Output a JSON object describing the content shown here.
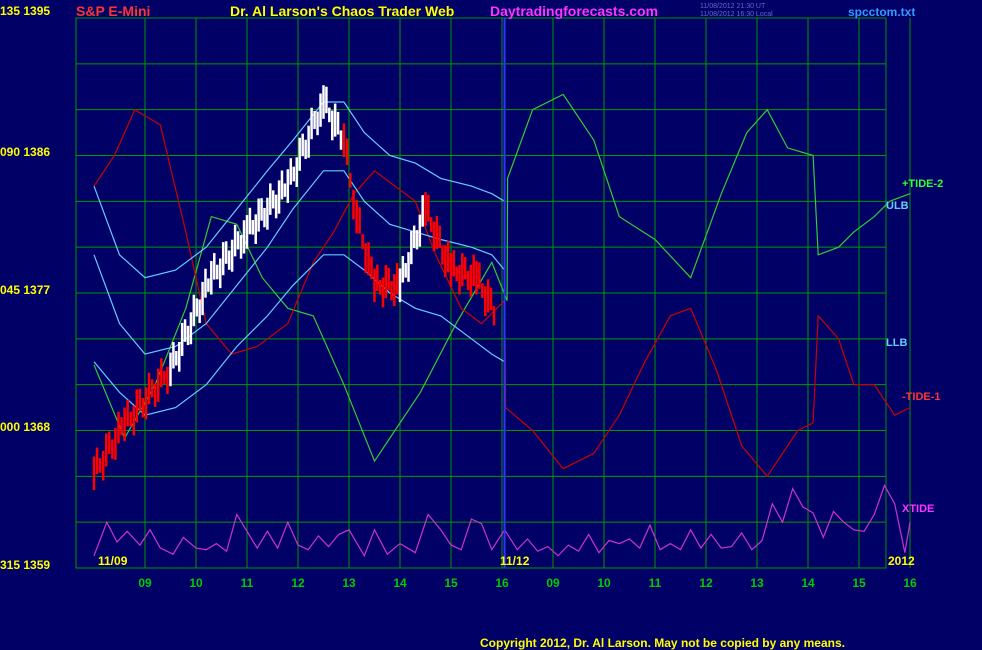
{
  "header": {
    "symbol": "S&P E-Mini",
    "title": "Dr. Al Larson's Chaos Trader Web",
    "site": "Daytradingforecasts.com",
    "ts1": "11/08/2012 21:30 UT",
    "ts2": "11/08/2012 16:30 Local",
    "file": "spcctom.txt"
  },
  "colors": {
    "background": "#000066",
    "grid": "#009900",
    "price_up": "#ffffff",
    "price_down": "#ff0000",
    "tide_plus": "#33cc33",
    "tide_minus": "#cc0000",
    "bands": "#66ccff",
    "xtide": "#cc33cc",
    "accent_yellow": "#ffff00"
  },
  "copyright": "Copyright 2012, Dr. Al Larson. May not be copied by any means.",
  "chart_data": {
    "type": "line",
    "y_axis_labels": [
      {
        "left": "135",
        "price": "1395"
      },
      {
        "left": "090",
        "price": "1386"
      },
      {
        "left": "045",
        "price": "1377"
      },
      {
        "left": "000",
        "price": "1368"
      },
      {
        "left": "315",
        "price": "1359"
      }
    ],
    "ylim": [
      1359,
      1395
    ],
    "x_ticks": [
      "09",
      "10",
      "11",
      "12",
      "13",
      "14",
      "15",
      "16",
      "09",
      "10",
      "11",
      "12",
      "13",
      "14",
      "15",
      "16"
    ],
    "x_tick_days": [
      1,
      2,
      3,
      4,
      5,
      6,
      7,
      8,
      9,
      10,
      11,
      12,
      13,
      14,
      15,
      16
    ],
    "date_labels": {
      "start": "11/09",
      "mid": "11/12",
      "end": "2012"
    },
    "right_labels": {
      "tide_plus": "+TIDE-2",
      "ulb": "ULB",
      "llb": "LLB",
      "tide_minus": "-TIDE-1",
      "xtide": "XTIDE"
    },
    "now_day": 8.05,
    "series": [
      {
        "key": "tide_plus",
        "color": "#33cc33",
        "points": [
          [
            0,
            1372.3
          ],
          [
            0.6,
            1367.5
          ],
          [
            1.2,
            1371
          ],
          [
            1.8,
            1376
          ],
          [
            2.3,
            1382
          ],
          [
            2.8,
            1381.5
          ],
          [
            3.3,
            1378
          ],
          [
            3.8,
            1376
          ],
          [
            4.3,
            1375.5
          ],
          [
            4.9,
            1371
          ],
          [
            5.5,
            1366
          ],
          [
            6.4,
            1370.5
          ],
          [
            7.1,
            1375
          ],
          [
            7.8,
            1379
          ],
          [
            8.1,
            1376.5
          ],
          [
            8.11,
            1384.5
          ],
          [
            8.6,
            1389
          ],
          [
            9.2,
            1390
          ],
          [
            9.8,
            1387
          ],
          [
            10.3,
            1382
          ],
          [
            11.0,
            1380.5
          ],
          [
            11.7,
            1378
          ],
          [
            12.3,
            1383.5
          ],
          [
            12.8,
            1387.5
          ],
          [
            13.2,
            1389
          ],
          [
            13.6,
            1386.5
          ],
          [
            14.1,
            1386
          ],
          [
            14.2,
            1379.5
          ],
          [
            14.6,
            1380
          ],
          [
            14.9,
            1381
          ],
          [
            15.3,
            1382
          ],
          [
            15.6,
            1383
          ],
          [
            16.0,
            1383.5
          ]
        ]
      },
      {
        "key": "tide_minus",
        "color": "#cc0000",
        "points": [
          [
            0,
            1384
          ],
          [
            0.4,
            1386
          ],
          [
            0.8,
            1389
          ],
          [
            1.3,
            1388
          ],
          [
            1.8,
            1381
          ],
          [
            2.2,
            1375
          ],
          [
            2.7,
            1373
          ],
          [
            3.2,
            1373.5
          ],
          [
            3.8,
            1375
          ],
          [
            4.3,
            1379
          ],
          [
            4.7,
            1381
          ],
          [
            5.1,
            1383.5
          ],
          [
            5.5,
            1385
          ],
          [
            5.9,
            1384
          ],
          [
            6.3,
            1383
          ],
          [
            6.7,
            1379.5
          ],
          [
            7.2,
            1376
          ],
          [
            7.6,
            1375
          ],
          [
            8.05,
            1376.5
          ],
          [
            8.07,
            1369.5
          ],
          [
            8.6,
            1368
          ],
          [
            9.2,
            1365.5
          ],
          [
            9.8,
            1366.5
          ],
          [
            10.3,
            1369
          ],
          [
            10.8,
            1372.5
          ],
          [
            11.3,
            1375.5
          ],
          [
            11.7,
            1376
          ],
          [
            12.2,
            1372
          ],
          [
            12.7,
            1367
          ],
          [
            13.2,
            1365
          ],
          [
            13.8,
            1368
          ],
          [
            14.1,
            1368.5
          ],
          [
            14.2,
            1375.5
          ],
          [
            14.6,
            1374
          ],
          [
            14.9,
            1371
          ],
          [
            15.3,
            1371
          ],
          [
            15.7,
            1369
          ],
          [
            16.0,
            1369.5
          ]
        ]
      },
      {
        "key": "ulb",
        "color": "#66ccff",
        "points": [
          [
            0,
            1384
          ],
          [
            0.5,
            1379.5
          ],
          [
            1.0,
            1378
          ],
          [
            1.6,
            1378.5
          ],
          [
            2.2,
            1380
          ],
          [
            2.8,
            1382.5
          ],
          [
            3.4,
            1385
          ],
          [
            3.9,
            1387
          ],
          [
            4.5,
            1389.5
          ],
          [
            4.9,
            1389.5
          ],
          [
            5.3,
            1387.5
          ],
          [
            5.8,
            1386
          ],
          [
            6.3,
            1385.5
          ],
          [
            6.8,
            1384.5
          ],
          [
            7.4,
            1384
          ],
          [
            7.8,
            1383.5
          ],
          [
            8.05,
            1383
          ]
        ]
      },
      {
        "key": "mid_band",
        "color": "#66ccff",
        "points": [
          [
            0,
            1379.5
          ],
          [
            0.5,
            1375
          ],
          [
            1.0,
            1373
          ],
          [
            1.6,
            1373.5
          ],
          [
            2.2,
            1375
          ],
          [
            2.8,
            1377.5
          ],
          [
            3.4,
            1380
          ],
          [
            3.9,
            1382.5
          ],
          [
            4.5,
            1385
          ],
          [
            4.9,
            1385
          ],
          [
            5.3,
            1383
          ],
          [
            5.8,
            1381.5
          ],
          [
            6.3,
            1381
          ],
          [
            6.8,
            1380.5
          ],
          [
            7.4,
            1380
          ],
          [
            7.8,
            1379.5
          ],
          [
            8.05,
            1378.5
          ]
        ]
      },
      {
        "key": "llb",
        "color": "#66ccff",
        "points": [
          [
            0,
            1372.5
          ],
          [
            0.5,
            1370.5
          ],
          [
            1.0,
            1369
          ],
          [
            1.6,
            1369.5
          ],
          [
            2.2,
            1371
          ],
          [
            2.8,
            1373.5
          ],
          [
            3.4,
            1375.5
          ],
          [
            3.9,
            1377.5
          ],
          [
            4.5,
            1379.5
          ],
          [
            4.9,
            1379.5
          ],
          [
            5.3,
            1378.5
          ],
          [
            5.8,
            1377
          ],
          [
            6.3,
            1376
          ],
          [
            6.8,
            1375.5
          ],
          [
            7.4,
            1374
          ],
          [
            7.8,
            1373
          ],
          [
            8.05,
            1372.5
          ]
        ]
      },
      {
        "key": "xtide",
        "color": "#cc33cc",
        "points": [
          [
            0,
            1359.8
          ],
          [
            0.25,
            1362
          ],
          [
            0.45,
            1360.7
          ],
          [
            0.65,
            1361.4
          ],
          [
            0.9,
            1360.5
          ],
          [
            1.1,
            1361.5
          ],
          [
            1.3,
            1360.3
          ],
          [
            1.55,
            1359.9
          ],
          [
            1.75,
            1361
          ],
          [
            2.0,
            1360.3
          ],
          [
            2.2,
            1360.2
          ],
          [
            2.4,
            1360.6
          ],
          [
            2.6,
            1360.1
          ],
          [
            2.8,
            1362.5
          ],
          [
            3.0,
            1361.4
          ],
          [
            3.2,
            1360.3
          ],
          [
            3.4,
            1361.4
          ],
          [
            3.6,
            1360.3
          ],
          [
            3.8,
            1362
          ],
          [
            4.0,
            1360.5
          ],
          [
            4.2,
            1360.2
          ],
          [
            4.4,
            1361.1
          ],
          [
            4.6,
            1360.4
          ],
          [
            4.8,
            1361.2
          ],
          [
            5.0,
            1361.5
          ],
          [
            5.3,
            1359.8
          ],
          [
            5.5,
            1361.5
          ],
          [
            5.75,
            1359.9
          ],
          [
            6.0,
            1360.6
          ],
          [
            6.3,
            1360
          ],
          [
            6.55,
            1362.5
          ],
          [
            6.8,
            1361.5
          ],
          [
            7.0,
            1360.5
          ],
          [
            7.2,
            1360.2
          ],
          [
            7.4,
            1362.2
          ],
          [
            7.6,
            1361.9
          ],
          [
            7.8,
            1360.2
          ],
          [
            8.05,
            1361.5
          ],
          [
            8.3,
            1360.2
          ],
          [
            8.5,
            1360.9
          ],
          [
            8.7,
            1360.1
          ],
          [
            8.9,
            1360.4
          ],
          [
            9.1,
            1359.8
          ],
          [
            9.3,
            1360.5
          ],
          [
            9.5,
            1360.1
          ],
          [
            9.7,
            1361.2
          ],
          [
            9.9,
            1360
          ],
          [
            10.1,
            1360.8
          ],
          [
            10.3,
            1360.6
          ],
          [
            10.5,
            1360.9
          ],
          [
            10.7,
            1360.3
          ],
          [
            10.9,
            1361.8
          ],
          [
            11.1,
            1360.2
          ],
          [
            11.3,
            1360.6
          ],
          [
            11.5,
            1360.2
          ],
          [
            11.7,
            1361.5
          ],
          [
            11.9,
            1360.3
          ],
          [
            12.1,
            1361.2
          ],
          [
            12.3,
            1360.3
          ],
          [
            12.5,
            1360.4
          ],
          [
            12.7,
            1361.3
          ],
          [
            12.9,
            1360.2
          ],
          [
            13.1,
            1360.8
          ],
          [
            13.3,
            1363.2
          ],
          [
            13.5,
            1362
          ],
          [
            13.7,
            1364.2
          ],
          [
            13.9,
            1363
          ],
          [
            14.1,
            1362.6
          ],
          [
            14.3,
            1361
          ],
          [
            14.5,
            1362.7
          ],
          [
            14.7,
            1362
          ],
          [
            14.9,
            1361.5
          ],
          [
            15.1,
            1361.4
          ],
          [
            15.3,
            1362.5
          ],
          [
            15.5,
            1364.4
          ],
          [
            15.7,
            1363.2
          ],
          [
            15.9,
            1360
          ],
          [
            16.0,
            1362
          ]
        ]
      }
    ],
    "price_segments": [
      {
        "from": [
          0.0,
          1365.2
        ],
        "to": [
          0.6,
          1368.4
        ],
        "dir": "down"
      },
      {
        "from": [
          0.6,
          1368.4
        ],
        "to": [
          1.5,
          1372
        ],
        "dir": "down"
      },
      {
        "from": [
          1.5,
          1372
        ],
        "to": [
          2.3,
          1378
        ],
        "dir": "up"
      },
      {
        "from": [
          2.3,
          1378
        ],
        "to": [
          3.0,
          1381
        ],
        "dir": "up"
      },
      {
        "from": [
          3.0,
          1381
        ],
        "to": [
          3.8,
          1384
        ],
        "dir": "up"
      },
      {
        "from": [
          3.8,
          1384
        ],
        "to": [
          4.5,
          1389.5
        ],
        "dir": "up"
      },
      {
        "from": [
          4.5,
          1389.5
        ],
        "to": [
          4.9,
          1387
        ],
        "dir": "up"
      },
      {
        "from": [
          4.9,
          1387
        ],
        "to": [
          5.15,
          1382
        ],
        "dir": "down"
      },
      {
        "from": [
          5.15,
          1382
        ],
        "to": [
          5.5,
          1377.5
        ],
        "dir": "down"
      },
      {
        "from": [
          5.5,
          1377.5
        ],
        "to": [
          6.0,
          1377.5
        ],
        "dir": "down"
      },
      {
        "from": [
          6.0,
          1377.5
        ],
        "to": [
          6.5,
          1382.5
        ],
        "dir": "up"
      },
      {
        "from": [
          6.5,
          1382.5
        ],
        "to": [
          7.0,
          1378.5
        ],
        "dir": "down"
      },
      {
        "from": [
          7.0,
          1378.5
        ],
        "to": [
          7.5,
          1378
        ],
        "dir": "down"
      },
      {
        "from": [
          7.5,
          1378
        ],
        "to": [
          7.9,
          1375.5
        ],
        "dir": "down"
      }
    ]
  }
}
